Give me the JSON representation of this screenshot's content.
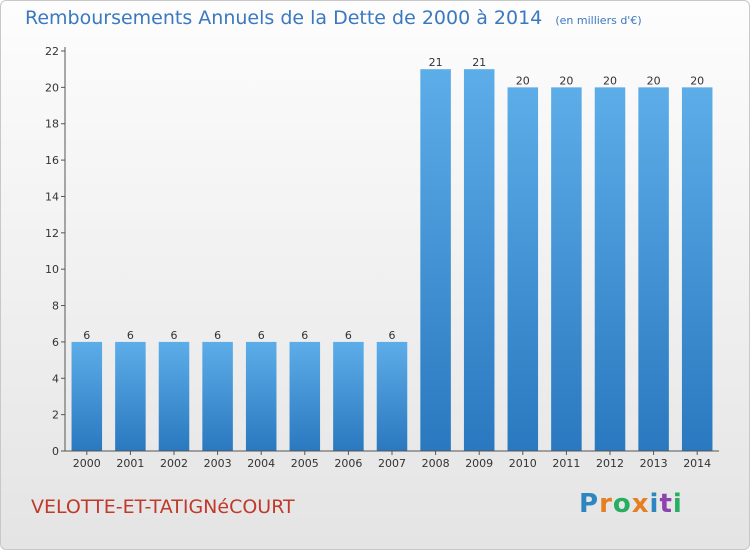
{
  "header": {
    "title": "Remboursements Annuels de la Dette de 2000 à 2014",
    "subtitle": "(en milliers d'€)"
  },
  "footer": {
    "commune": "VELOTTE-ET-TATIGNéCOURT",
    "logo_letters": [
      "P",
      "r",
      "o",
      "x",
      "i",
      "t",
      "i"
    ],
    "logo_colors": [
      "#2e86c1",
      "#e67e22",
      "#27ae60",
      "#e67e22",
      "#2e86c1",
      "#8e44ad",
      "#27ae60"
    ]
  },
  "chart_data": {
    "type": "bar",
    "title": "Remboursements Annuels de la Dette de 2000 à 2014",
    "xlabel": "",
    "ylabel": "",
    "categories": [
      "2000",
      "2001",
      "2002",
      "2003",
      "2004",
      "2005",
      "2006",
      "2007",
      "2008",
      "2009",
      "2010",
      "2011",
      "2012",
      "2013",
      "2014"
    ],
    "values": [
      6,
      6,
      6,
      6,
      6,
      6,
      6,
      6,
      21,
      21,
      20,
      20,
      20,
      20,
      20
    ],
    "data_labels": [
      "6",
      "6",
      "6",
      "6",
      "6",
      "6",
      "6",
      "6",
      "21",
      "21",
      "20",
      "20",
      "20",
      "20",
      "20"
    ],
    "ylim": [
      0,
      22
    ],
    "yticks": [
      0,
      2,
      4,
      6,
      8,
      10,
      12,
      14,
      16,
      18,
      20,
      22
    ],
    "grid": false,
    "bar_color": "#3d8fd6"
  }
}
